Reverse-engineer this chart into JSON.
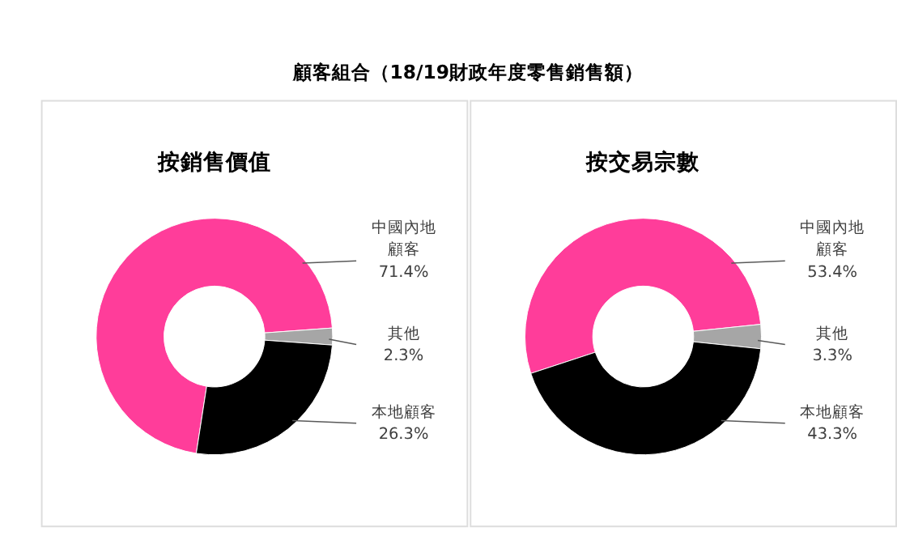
{
  "chart_data": [
    {
      "type": "donut",
      "title": "按銷售價值",
      "annotations": [
        "顧客組合（18/19財政年度零售銷售額）"
      ],
      "categories": [
        "中國內地顧客",
        "其他",
        "本地顧客"
      ],
      "values": [
        71.4,
        2.3,
        26.3
      ],
      "colors": [
        "#ff3d9a",
        "#a6a6a6",
        "#000000"
      ],
      "value_labels": [
        "71.4%",
        "2.3%",
        "26.3%"
      ]
    },
    {
      "type": "donut",
      "title": "按交易宗數",
      "categories": [
        "中國內地顧客",
        "其他",
        "本地顧客"
      ],
      "values": [
        53.4,
        3.3,
        43.3
      ],
      "colors": [
        "#ff3d9a",
        "#a6a6a6",
        "#000000"
      ],
      "value_labels": [
        "53.4%",
        "3.3%",
        "43.3%"
      ]
    }
  ]
}
